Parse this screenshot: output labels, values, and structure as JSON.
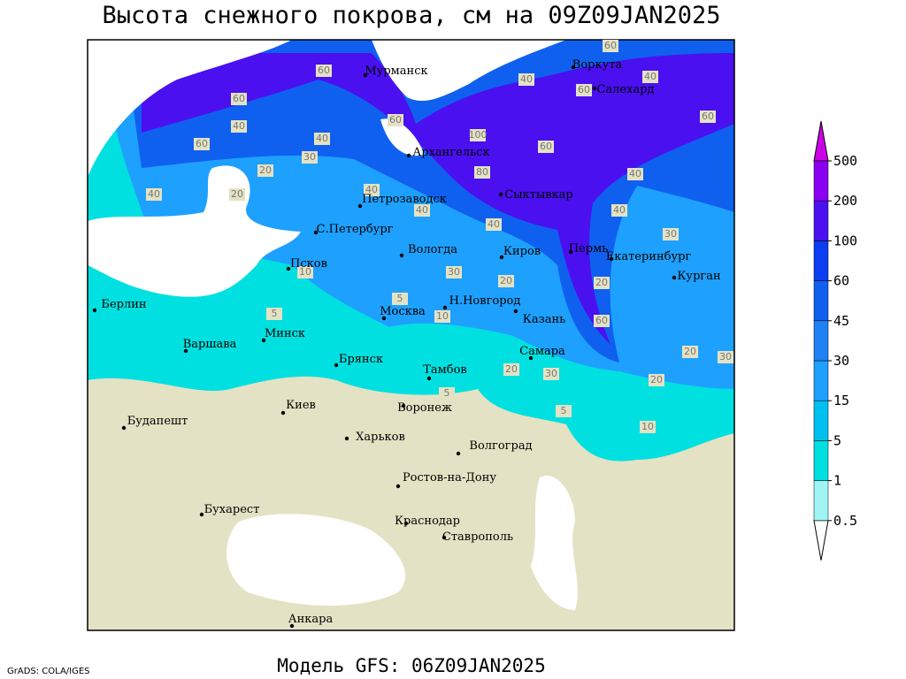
{
  "header": {
    "title": "Высота снежного покрова, см на 09Z09JAN2025"
  },
  "map": {
    "cities": [
      "Мурманск",
      "Воркута",
      "Салехард",
      "Архангельск",
      "Петрозаводск",
      "Сыктывкар",
      "С.Петербург",
      "Вологда",
      "Киров",
      "Пермь",
      "Екатеринбург",
      "Псков",
      "Курган",
      "Н.Новгород",
      "Берлин",
      "Москва",
      "Казань",
      "Минск",
      "Варшава",
      "Брянск",
      "Тамбов",
      "Самара",
      "Киев",
      "Воронеж",
      "Будапешт",
      "Харьков",
      "Волгоград",
      "Ростов-на-Дону",
      "Бухарест",
      "Краснодар",
      "Ставрополь",
      "Анкара"
    ],
    "contour_labels": [
      60,
      60,
      40,
      60,
      40,
      30,
      20,
      40,
      40,
      40,
      60,
      100,
      80,
      60,
      40,
      20,
      40,
      60,
      60,
      40,
      60,
      40,
      40,
      30,
      10,
      30,
      20,
      5,
      10,
      5,
      60,
      20,
      30,
      20,
      10,
      5,
      20,
      30,
      5,
      20
    ]
  },
  "legend": {
    "levels": [
      0.5,
      1,
      5,
      15,
      30,
      45,
      60,
      100,
      200,
      500
    ],
    "colors": [
      "#ffffff",
      "#a0f4f4",
      "#00e0e0",
      "#00c0f0",
      "#1ea0ff",
      "#1e82f5",
      "#1060f0",
      "#0a3ef0",
      "#4a10f0",
      "#8a00f0",
      "#cc00e8"
    ]
  },
  "footer": {
    "credit": "GrADS: COLA/IGES",
    "model": "Модель GFS: 06Z09JAN2025"
  }
}
